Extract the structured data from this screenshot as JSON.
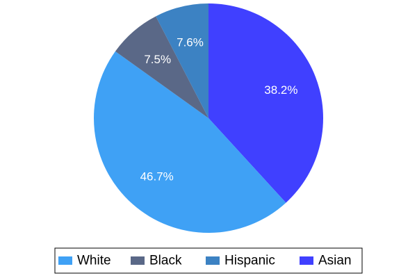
{
  "chart_data": {
    "type": "pie",
    "title": "",
    "legend_position": "bottom",
    "start": "12 o'clock",
    "direction": "clockwise",
    "slices": [
      {
        "name": "Asian",
        "value": 38.2,
        "label": "38.2%",
        "color": "#4040FF"
      },
      {
        "name": "White",
        "value": 46.7,
        "label": "46.7%",
        "color": "#3FA1F5"
      },
      {
        "name": "Black",
        "value": 7.5,
        "label": "7.5%",
        "color": "#5A6887"
      },
      {
        "name": "Hispanic",
        "value": 7.6,
        "label": "7.6%",
        "color": "#3C82C3"
      }
    ],
    "legend": [
      {
        "name": "White",
        "color": "#3FA1F5"
      },
      {
        "name": "Black",
        "color": "#5A6887"
      },
      {
        "name": "Hispanic",
        "color": "#3C82C3"
      },
      {
        "name": "Asian",
        "color": "#4040FF"
      }
    ]
  }
}
